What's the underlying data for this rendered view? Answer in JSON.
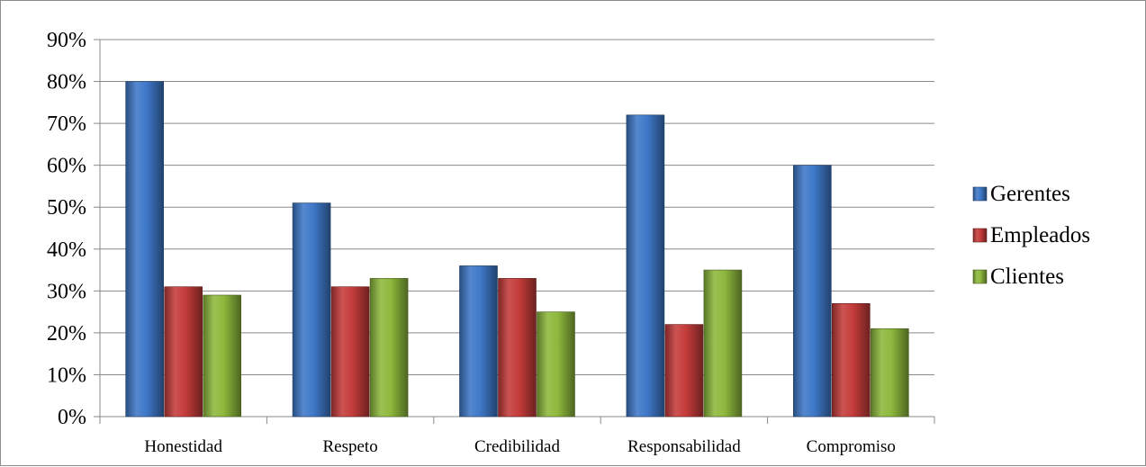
{
  "chart_data": {
    "type": "bar",
    "title": "",
    "xlabel": "",
    "ylabel": "",
    "categories": [
      "Honestidad",
      "Respeto",
      "Credibilidad",
      "Responsabilidad",
      "Compromiso"
    ],
    "series": [
      {
        "name": "Gerentes",
        "values": [
          80,
          51,
          36,
          72,
          60
        ],
        "color": "#3e78c8"
      },
      {
        "name": "Empleados",
        "values": [
          31,
          31,
          33,
          22,
          27
        ],
        "color": "#c43c3a"
      },
      {
        "name": "Clientes",
        "values": [
          29,
          33,
          25,
          35,
          21
        ],
        "color": "#8db83c"
      }
    ],
    "ylim": [
      0,
      90
    ],
    "yticks": [
      0,
      10,
      20,
      30,
      40,
      50,
      60,
      70,
      80,
      90
    ],
    "ytick_labels": [
      "0%",
      "10%",
      "20%",
      "30%",
      "40%",
      "50%",
      "60%",
      "70%",
      "80%",
      "90%"
    ],
    "grid": true,
    "legend_position": "right"
  }
}
